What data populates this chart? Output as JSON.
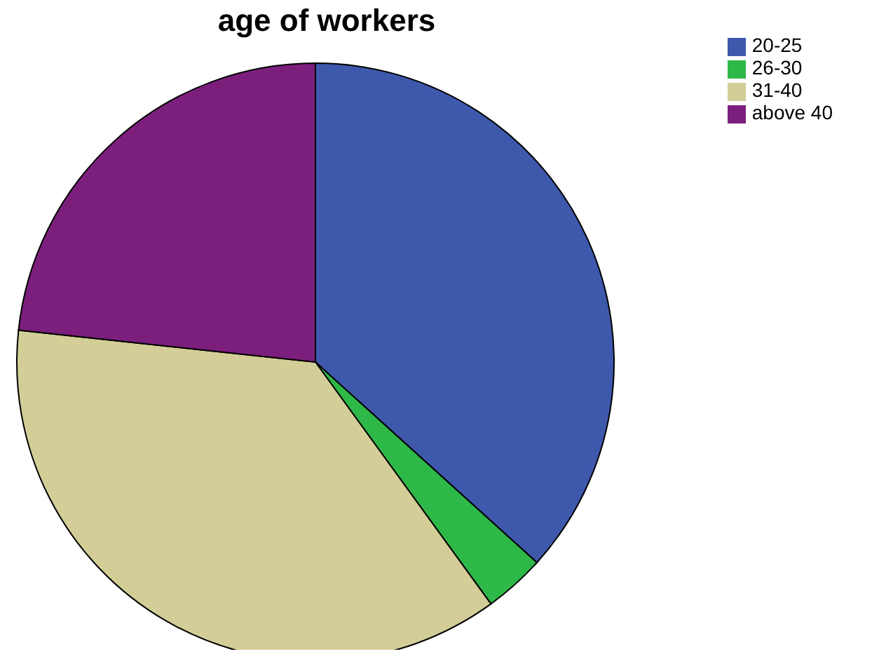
{
  "chart_data": {
    "type": "pie",
    "title": "age of workers",
    "categories": [
      "20-25",
      "26-30",
      "31-40",
      "above 40"
    ],
    "values": [
      36.7,
      3.3,
      36.7,
      23.3
    ],
    "colors": [
      "#3e58ac",
      "#2eb848",
      "#d3ce97",
      "#7c1f7c"
    ],
    "legend": "top right"
  }
}
